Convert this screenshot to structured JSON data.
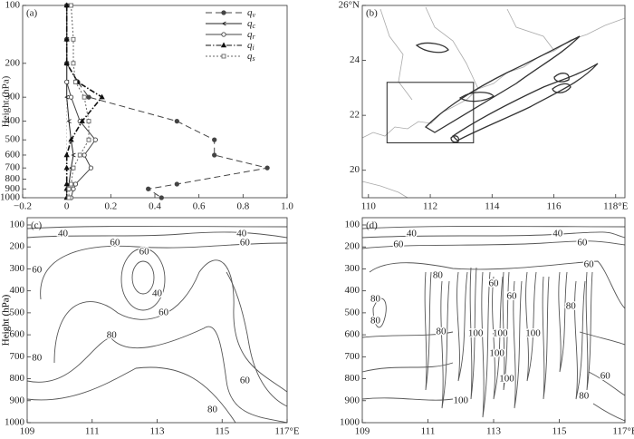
{
  "chart_data": [
    {
      "type": "line",
      "label": "(a)",
      "ylabel": "Height (hPa)",
      "ylog": true,
      "xlim": [
        -0.2,
        1.0
      ],
      "xticks": [
        {
          "value": -0.2,
          "label": "−0.2"
        },
        0,
        0.2,
        0.4,
        0.6,
        0.8,
        {
          "value": 1,
          "label": "1.0"
        }
      ],
      "ylim": [
        1000,
        100
      ],
      "yticks": [
        100,
        200,
        300,
        400,
        500,
        600,
        700,
        800,
        900,
        1000
      ],
      "y": [
        100,
        150,
        200,
        250,
        300,
        400,
        500,
        600,
        700,
        850,
        900,
        1000
      ],
      "series": [
        {
          "name": "qv",
          "color": "#444",
          "dash": "7,4",
          "marker": "filled-circle",
          "values": [
            0,
            0,
            0,
            0.05,
            0.1,
            0.5,
            0.67,
            0.67,
            0.91,
            0.5,
            0.37,
            0.43
          ]
        },
        {
          "name": "qc",
          "color": "#222",
          "dash": "none",
          "marker": "arrow",
          "values": [
            0,
            0,
            0,
            0,
            0,
            0.01,
            0.02,
            0.03,
            0.02,
            0.01,
            0,
            0
          ]
        },
        {
          "name": "qr",
          "color": "#444",
          "dash": "none",
          "marker": "open-circle",
          "values": [
            0,
            0,
            0,
            0,
            0.02,
            0.06,
            0.13,
            0.08,
            0.11,
            0.04,
            0.03,
            0.02
          ]
        },
        {
          "name": "qi",
          "color": "#111",
          "dash": "6,2,1.5,2",
          "marker": "triangle",
          "values": [
            0,
            0,
            0,
            0.05,
            0.16,
            0.07,
            0.02,
            0,
            0,
            0,
            0,
            0
          ]
        },
        {
          "name": "qs",
          "color": "#666",
          "dash": "2,2",
          "marker": "open-square",
          "values": [
            0.02,
            0.03,
            0.03,
            0.04,
            0.08,
            0.1,
            0.1,
            0.06,
            0.03,
            0.02,
            0.01,
            0.01
          ]
        }
      ]
    },
    {
      "type": "map",
      "label": "(b)",
      "xlim": [
        109.8,
        118.3
      ],
      "xticks": [
        110,
        112,
        114,
        116,
        {
          "value": 118,
          "label": "118°E"
        }
      ],
      "ylim": [
        19,
        26
      ],
      "yticks": [
        20,
        22,
        24,
        {
          "value": 26,
          "label": "26°N"
        }
      ],
      "box": {
        "x": [
          110.6,
          113.4
        ],
        "y": [
          21,
          23.2
        ]
      }
    },
    {
      "type": "contour",
      "label": "(c)",
      "ylabel": "Height (hPa)",
      "xlim": [
        109,
        117
      ],
      "xticks": [
        109,
        111,
        113,
        115,
        {
          "value": 117,
          "label": "117°E"
        }
      ],
      "ylim": [
        1000,
        67
      ],
      "yticks": [
        100,
        200,
        300,
        400,
        500,
        600,
        700,
        800,
        900,
        1000
      ],
      "contour_labels": [
        {
          "value": 40,
          "x": 110.1,
          "y": 141
        },
        {
          "value": 60,
          "x": 111.7,
          "y": 183
        },
        {
          "value": 40,
          "x": 115.6,
          "y": 141
        },
        {
          "value": 60,
          "x": 115.7,
          "y": 183
        },
        {
          "value": 60,
          "x": 109.3,
          "y": 306
        },
        {
          "value": 60,
          "x": 112.6,
          "y": 224
        },
        {
          "value": 40,
          "x": 113.0,
          "y": 414
        },
        {
          "value": 60,
          "x": 113.2,
          "y": 500
        },
        {
          "value": 80,
          "x": 111.6,
          "y": 604
        },
        {
          "value": 80,
          "x": 109.3,
          "y": 707
        },
        {
          "value": 60,
          "x": 115.7,
          "y": 810
        },
        {
          "value": 80,
          "x": 114.7,
          "y": 942
        }
      ]
    },
    {
      "type": "contour",
      "label": "(d)",
      "ylabel": "Height (hPa)",
      "xlim": [
        109,
        117
      ],
      "xticks": [
        109,
        111,
        113,
        115,
        {
          "value": 117,
          "label": "117°E"
        }
      ],
      "ylim": [
        1000,
        67
      ],
      "yticks": [
        100,
        200,
        300,
        400,
        500,
        600,
        700,
        800,
        900,
        1000
      ],
      "contour_labels": [
        {
          "value": 40,
          "x": 110.5,
          "y": 141
        },
        {
          "value": 40,
          "x": 114.95,
          "y": 141
        },
        {
          "value": 60,
          "x": 110.1,
          "y": 191
        },
        {
          "value": 60,
          "x": 115.7,
          "y": 183
        },
        {
          "value": 60,
          "x": 115.9,
          "y": 282
        },
        {
          "value": 80,
          "x": 111.3,
          "y": 331
        },
        {
          "value": 80,
          "x": 109.4,
          "y": 439
        },
        {
          "value": 80,
          "x": 109.4,
          "y": 538
        },
        {
          "value": 60,
          "x": 113.0,
          "y": 368
        },
        {
          "value": 60,
          "x": 113.55,
          "y": 426
        },
        {
          "value": 80,
          "x": 115.35,
          "y": 472
        },
        {
          "value": 80,
          "x": 111.4,
          "y": 587
        },
        {
          "value": 100,
          "x": 112.45,
          "y": 595
        },
        {
          "value": 100,
          "x": 113.2,
          "y": 595
        },
        {
          "value": 100,
          "x": 114.2,
          "y": 595
        },
        {
          "value": 100,
          "x": 113.1,
          "y": 686
        },
        {
          "value": 100,
          "x": 113.4,
          "y": 802
        },
        {
          "value": 100,
          "x": 112.0,
          "y": 901
        },
        {
          "value": 60,
          "x": 116.4,
          "y": 790
        },
        {
          "value": 80,
          "x": 115.75,
          "y": 880
        }
      ]
    }
  ]
}
